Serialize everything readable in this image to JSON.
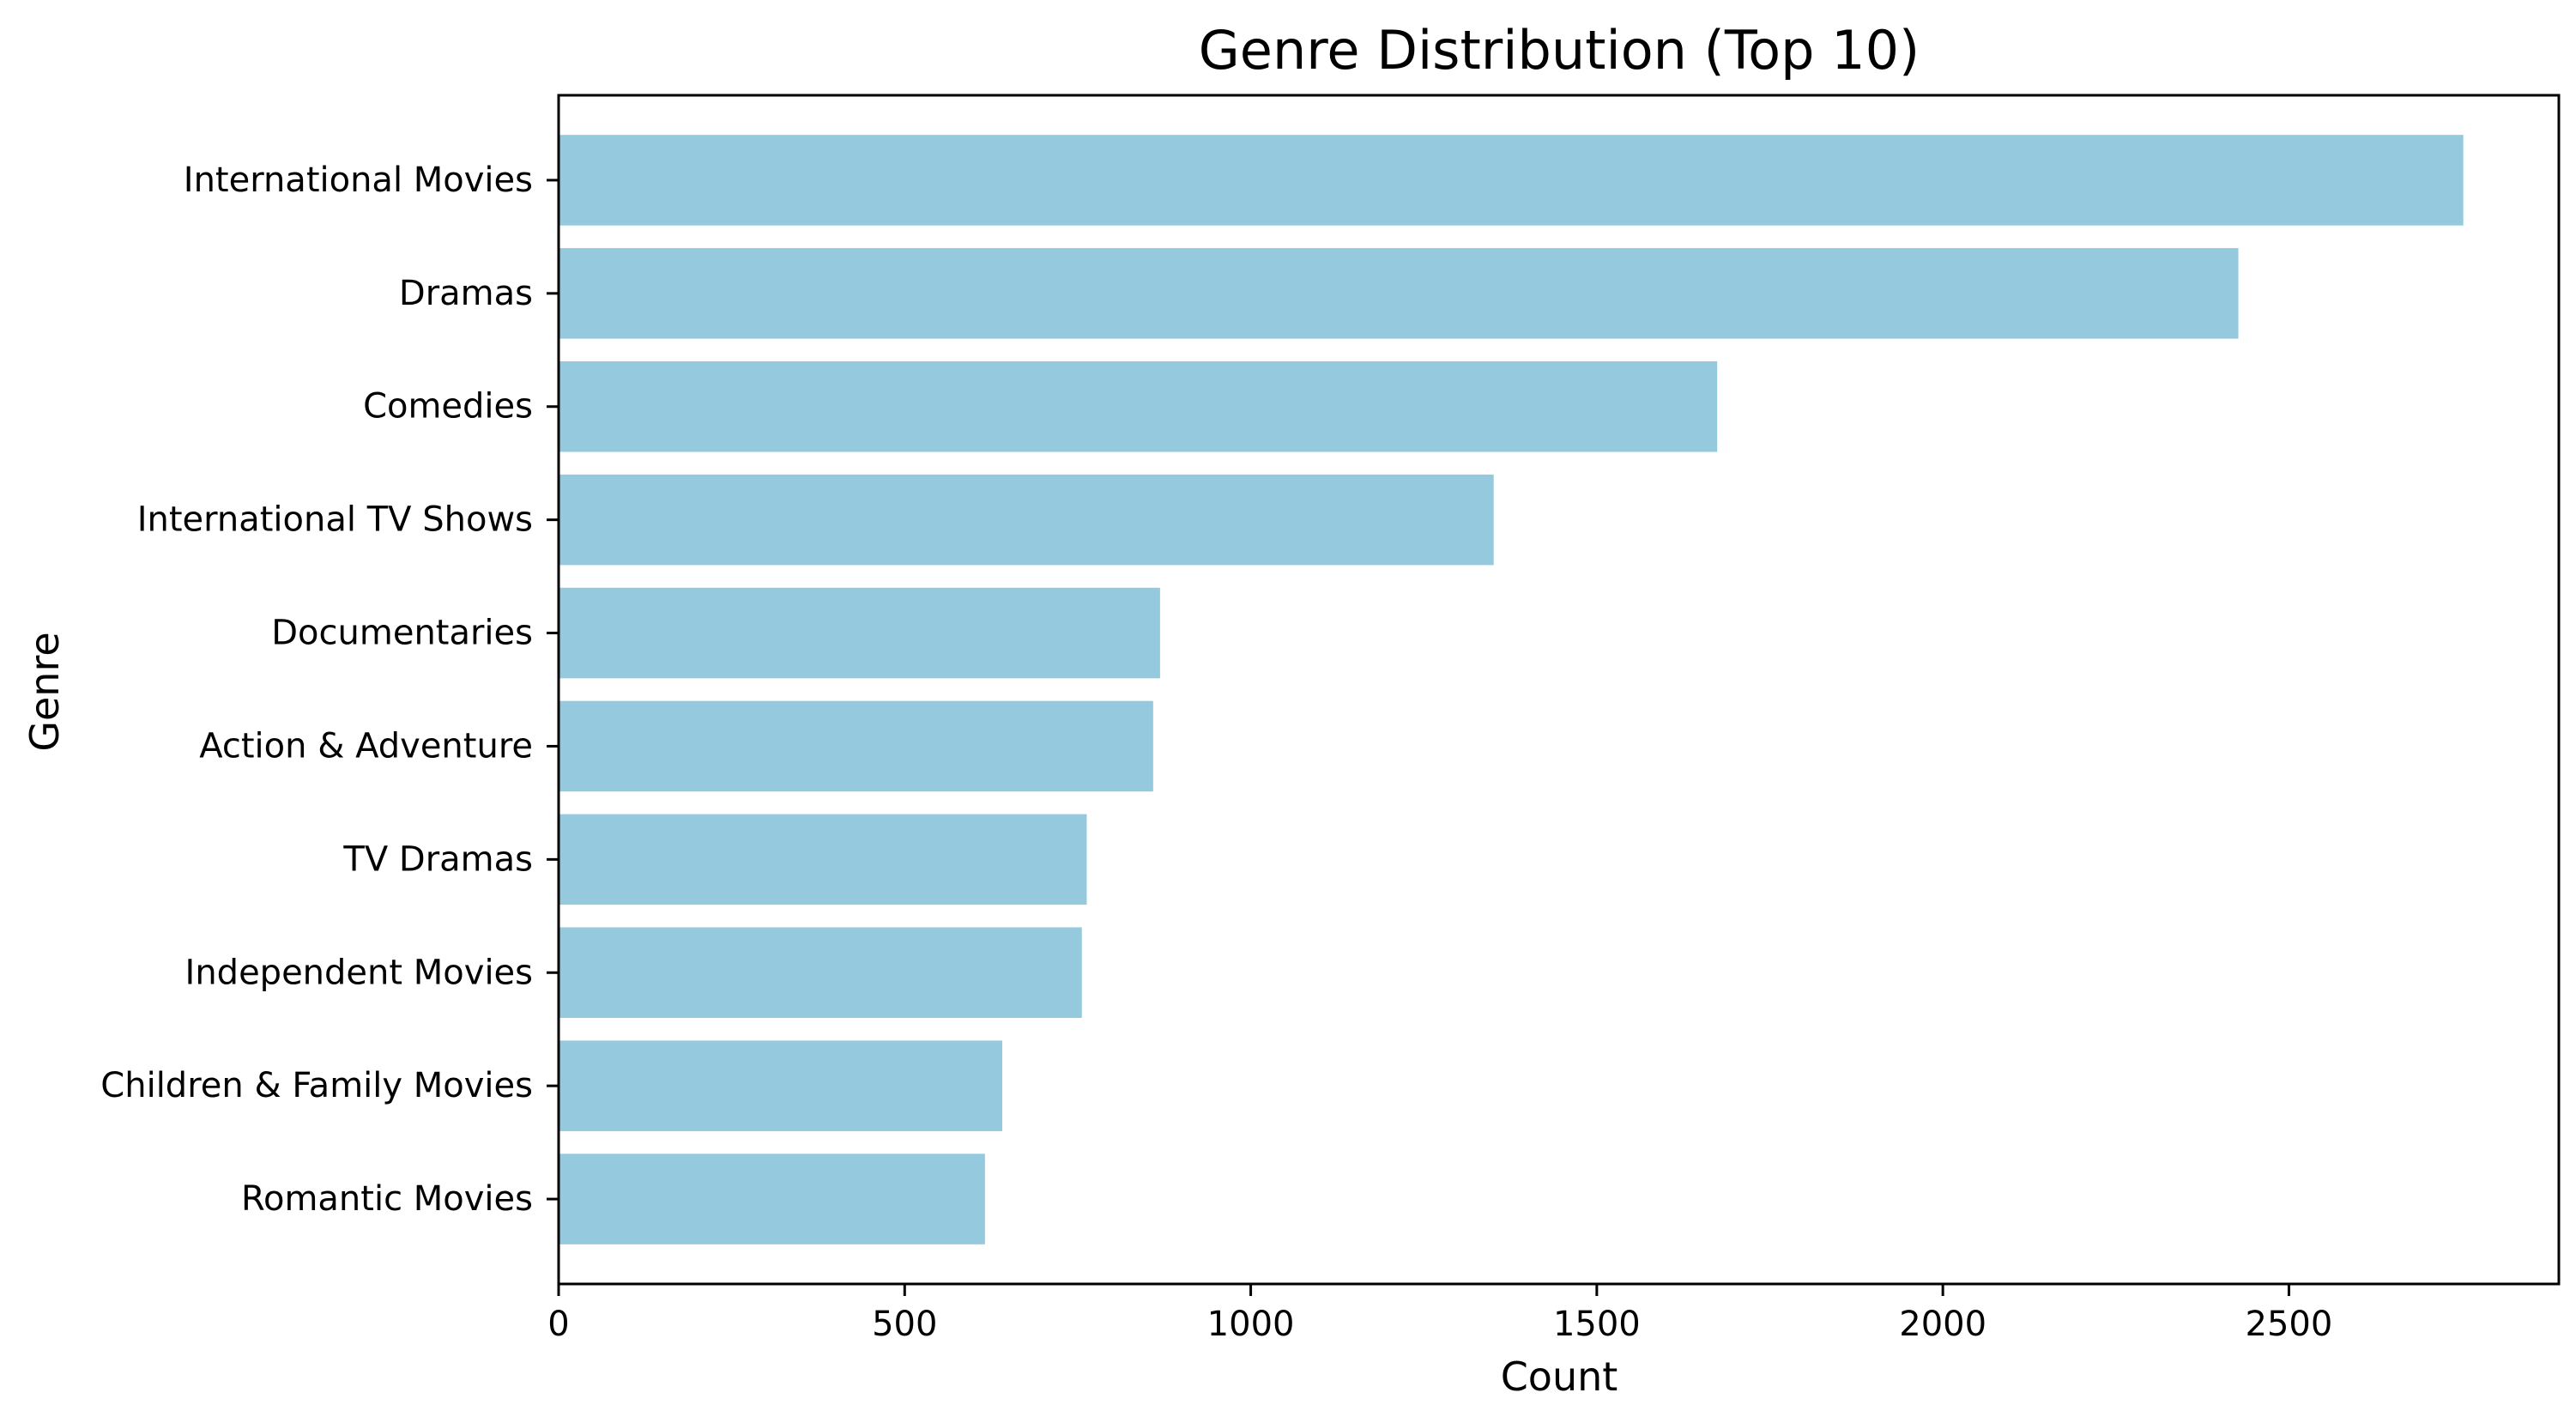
{
  "chart_data": {
    "type": "bar",
    "orientation": "horizontal",
    "title": "Genre Distribution (Top 10)",
    "xlabel": "Count",
    "ylabel": "Genre",
    "categories": [
      "International Movies",
      "Dramas",
      "Comedies",
      "International TV Shows",
      "Documentaries",
      "Action & Adventure",
      "TV Dramas",
      "Independent Movies",
      "Children & Family Movies",
      "Romantic Movies"
    ],
    "values": [
      2752,
      2427,
      1674,
      1351,
      869,
      859,
      763,
      756,
      641,
      616
    ],
    "xlim": [
      0,
      2890
    ],
    "xticks": [
      0,
      500,
      1000,
      1500,
      2000,
      2500
    ],
    "bar_color": "#95c9de",
    "grid": false,
    "legend": "none"
  }
}
